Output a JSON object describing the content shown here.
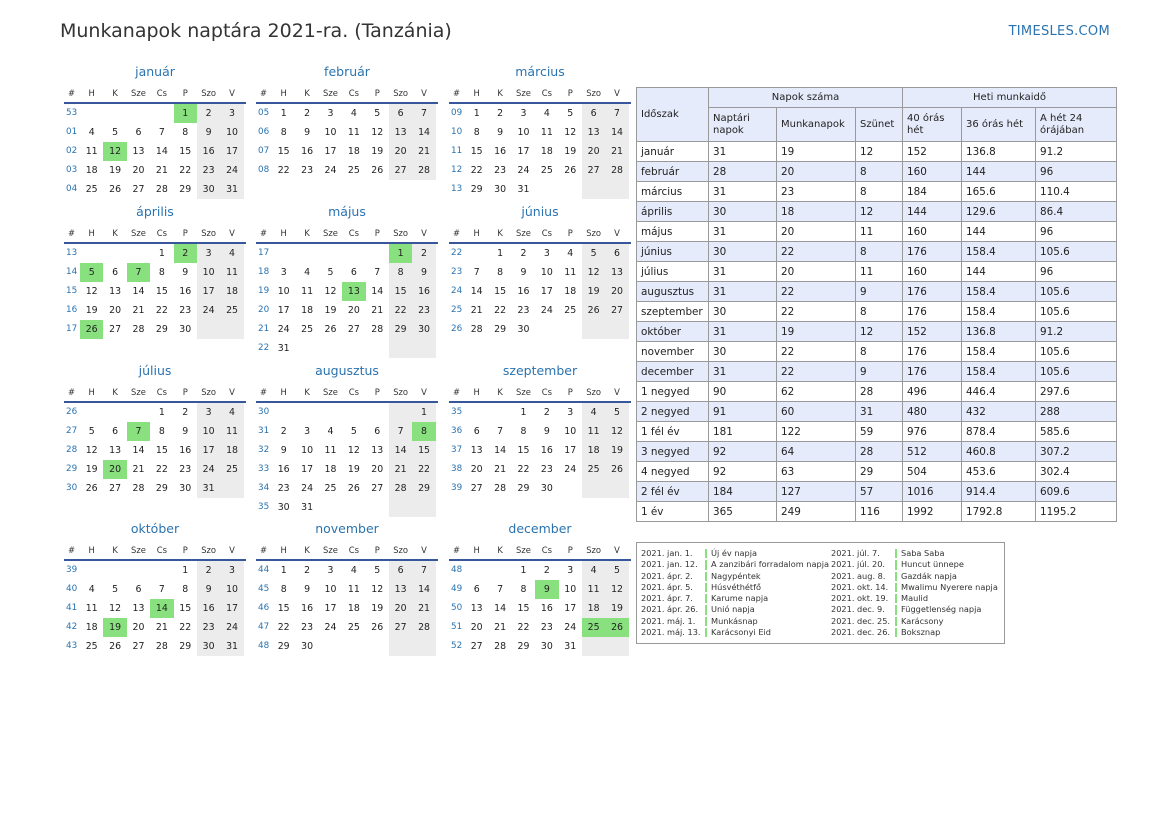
{
  "title": "Munkanapok naptára 2021-ra. (Tanzánia)",
  "brand": "TIMESLES.COM",
  "calendar": {
    "header": [
      "#",
      "H",
      "K",
      "Sze",
      "Cs",
      "P",
      "Szo",
      "V"
    ],
    "months": [
      {
        "name": "január",
        "rows": [
          [
            "53",
            "",
            "",
            "",
            "",
            "1",
            "2",
            "3"
          ],
          [
            "01",
            "4",
            "5",
            "6",
            "7",
            "8",
            "9",
            "10"
          ],
          [
            "02",
            "11",
            "12",
            "13",
            "14",
            "15",
            "16",
            "17"
          ],
          [
            "03",
            "18",
            "19",
            "20",
            "21",
            "22",
            "23",
            "24"
          ],
          [
            "04",
            "25",
            "26",
            "27",
            "28",
            "29",
            "30",
            "31"
          ]
        ],
        "holidays": [
          "1",
          "12"
        ]
      },
      {
        "name": "február",
        "rows": [
          [
            "05",
            "1",
            "2",
            "3",
            "4",
            "5",
            "6",
            "7"
          ],
          [
            "06",
            "8",
            "9",
            "10",
            "11",
            "12",
            "13",
            "14"
          ],
          [
            "07",
            "15",
            "16",
            "17",
            "18",
            "19",
            "20",
            "21"
          ],
          [
            "08",
            "22",
            "23",
            "24",
            "25",
            "26",
            "27",
            "28"
          ]
        ],
        "holidays": []
      },
      {
        "name": "március",
        "rows": [
          [
            "09",
            "1",
            "2",
            "3",
            "4",
            "5",
            "6",
            "7"
          ],
          [
            "10",
            "8",
            "9",
            "10",
            "11",
            "12",
            "13",
            "14"
          ],
          [
            "11",
            "15",
            "16",
            "17",
            "18",
            "19",
            "20",
            "21"
          ],
          [
            "12",
            "22",
            "23",
            "24",
            "25",
            "26",
            "27",
            "28"
          ],
          [
            "13",
            "29",
            "30",
            "31",
            "",
            "",
            "",
            ""
          ]
        ],
        "holidays": []
      },
      {
        "name": "április",
        "rows": [
          [
            "13",
            "",
            "",
            "",
            "1",
            "2",
            "3",
            "4"
          ],
          [
            "14",
            "5",
            "6",
            "7",
            "8",
            "9",
            "10",
            "11"
          ],
          [
            "15",
            "12",
            "13",
            "14",
            "15",
            "16",
            "17",
            "18"
          ],
          [
            "16",
            "19",
            "20",
            "21",
            "22",
            "23",
            "24",
            "25"
          ],
          [
            "17",
            "26",
            "27",
            "28",
            "29",
            "30",
            "",
            ""
          ]
        ],
        "holidays": [
          "2",
          "5",
          "7",
          "26"
        ]
      },
      {
        "name": "május",
        "rows": [
          [
            "17",
            "",
            "",
            "",
            "",
            "",
            "1",
            "2"
          ],
          [
            "18",
            "3",
            "4",
            "5",
            "6",
            "7",
            "8",
            "9"
          ],
          [
            "19",
            "10",
            "11",
            "12",
            "13",
            "14",
            "15",
            "16"
          ],
          [
            "20",
            "17",
            "18",
            "19",
            "20",
            "21",
            "22",
            "23"
          ],
          [
            "21",
            "24",
            "25",
            "26",
            "27",
            "28",
            "29",
            "30"
          ],
          [
            "22",
            "31",
            "",
            "",
            "",
            "",
            "",
            ""
          ]
        ],
        "holidays": [
          "1",
          "13"
        ]
      },
      {
        "name": "június",
        "rows": [
          [
            "22",
            "",
            "1",
            "2",
            "3",
            "4",
            "5",
            "6"
          ],
          [
            "23",
            "7",
            "8",
            "9",
            "10",
            "11",
            "12",
            "13"
          ],
          [
            "24",
            "14",
            "15",
            "16",
            "17",
            "18",
            "19",
            "20"
          ],
          [
            "25",
            "21",
            "22",
            "23",
            "24",
            "25",
            "26",
            "27"
          ],
          [
            "26",
            "28",
            "29",
            "30",
            "",
            "",
            "",
            ""
          ]
        ],
        "holidays": []
      },
      {
        "name": "július",
        "rows": [
          [
            "26",
            "",
            "",
            "",
            "1",
            "2",
            "3",
            "4"
          ],
          [
            "27",
            "5",
            "6",
            "7",
            "8",
            "9",
            "10",
            "11"
          ],
          [
            "28",
            "12",
            "13",
            "14",
            "15",
            "16",
            "17",
            "18"
          ],
          [
            "29",
            "19",
            "20",
            "21",
            "22",
            "23",
            "24",
            "25"
          ],
          [
            "30",
            "26",
            "27",
            "28",
            "29",
            "30",
            "31",
            ""
          ]
        ],
        "holidays": [
          "7",
          "20"
        ]
      },
      {
        "name": "augusztus",
        "rows": [
          [
            "30",
            "",
            "",
            "",
            "",
            "",
            "",
            "1"
          ],
          [
            "31",
            "2",
            "3",
            "4",
            "5",
            "6",
            "7",
            "8"
          ],
          [
            "32",
            "9",
            "10",
            "11",
            "12",
            "13",
            "14",
            "15"
          ],
          [
            "33",
            "16",
            "17",
            "18",
            "19",
            "20",
            "21",
            "22"
          ],
          [
            "34",
            "23",
            "24",
            "25",
            "26",
            "27",
            "28",
            "29"
          ],
          [
            "35",
            "30",
            "31",
            "",
            "",
            "",
            "",
            ""
          ]
        ],
        "holidays": [
          "8"
        ]
      },
      {
        "name": "szeptember",
        "rows": [
          [
            "35",
            "",
            "",
            "1",
            "2",
            "3",
            "4",
            "5"
          ],
          [
            "36",
            "6",
            "7",
            "8",
            "9",
            "10",
            "11",
            "12"
          ],
          [
            "37",
            "13",
            "14",
            "15",
            "16",
            "17",
            "18",
            "19"
          ],
          [
            "38",
            "20",
            "21",
            "22",
            "23",
            "24",
            "25",
            "26"
          ],
          [
            "39",
            "27",
            "28",
            "29",
            "30",
            "",
            "",
            ""
          ]
        ],
        "holidays": []
      },
      {
        "name": "október",
        "rows": [
          [
            "39",
            "",
            "",
            "",
            "",
            "1",
            "2",
            "3"
          ],
          [
            "40",
            "4",
            "5",
            "6",
            "7",
            "8",
            "9",
            "10"
          ],
          [
            "41",
            "11",
            "12",
            "13",
            "14",
            "15",
            "16",
            "17"
          ],
          [
            "42",
            "18",
            "19",
            "20",
            "21",
            "22",
            "23",
            "24"
          ],
          [
            "43",
            "25",
            "26",
            "27",
            "28",
            "29",
            "30",
            "31"
          ]
        ],
        "holidays": [
          "14",
          "19"
        ]
      },
      {
        "name": "november",
        "rows": [
          [
            "44",
            "1",
            "2",
            "3",
            "4",
            "5",
            "6",
            "7"
          ],
          [
            "45",
            "8",
            "9",
            "10",
            "11",
            "12",
            "13",
            "14"
          ],
          [
            "46",
            "15",
            "16",
            "17",
            "18",
            "19",
            "20",
            "21"
          ],
          [
            "47",
            "22",
            "23",
            "24",
            "25",
            "26",
            "27",
            "28"
          ],
          [
            "48",
            "29",
            "30",
            "",
            "",
            "",
            "",
            ""
          ]
        ],
        "holidays": []
      },
      {
        "name": "december",
        "rows": [
          [
            "48",
            "",
            "",
            "1",
            "2",
            "3",
            "4",
            "5"
          ],
          [
            "49",
            "6",
            "7",
            "8",
            "9",
            "10",
            "11",
            "12"
          ],
          [
            "50",
            "13",
            "14",
            "15",
            "16",
            "17",
            "18",
            "19"
          ],
          [
            "51",
            "20",
            "21",
            "22",
            "23",
            "24",
            "25",
            "26"
          ],
          [
            "52",
            "27",
            "28",
            "29",
            "30",
            "31",
            "",
            ""
          ]
        ],
        "holidays": [
          "9",
          "25",
          "26"
        ]
      }
    ]
  },
  "stats": {
    "h_period": "Időszak",
    "h_days": "Napok száma",
    "h_weekly": "Heti munkaidő",
    "cols": [
      "Naptári napok",
      "Munkanapok",
      "Szünet",
      "40 órás hét",
      "36 órás hét",
      "A hét 24 órájában"
    ],
    "rows": [
      [
        "január",
        "31",
        "19",
        "12",
        "152",
        "136.8",
        "91.2"
      ],
      [
        "február",
        "28",
        "20",
        "8",
        "160",
        "144",
        "96"
      ],
      [
        "március",
        "31",
        "23",
        "8",
        "184",
        "165.6",
        "110.4"
      ],
      [
        "április",
        "30",
        "18",
        "12",
        "144",
        "129.6",
        "86.4"
      ],
      [
        "május",
        "31",
        "20",
        "11",
        "160",
        "144",
        "96"
      ],
      [
        "június",
        "30",
        "22",
        "8",
        "176",
        "158.4",
        "105.6"
      ],
      [
        "július",
        "31",
        "20",
        "11",
        "160",
        "144",
        "96"
      ],
      [
        "augusztus",
        "31",
        "22",
        "9",
        "176",
        "158.4",
        "105.6"
      ],
      [
        "szeptember",
        "30",
        "22",
        "8",
        "176",
        "158.4",
        "105.6"
      ],
      [
        "október",
        "31",
        "19",
        "12",
        "152",
        "136.8",
        "91.2"
      ],
      [
        "november",
        "30",
        "22",
        "8",
        "176",
        "158.4",
        "105.6"
      ],
      [
        "december",
        "31",
        "22",
        "9",
        "176",
        "158.4",
        "105.6"
      ],
      [
        "1 negyed",
        "90",
        "62",
        "28",
        "496",
        "446.4",
        "297.6"
      ],
      [
        "2 negyed",
        "91",
        "60",
        "31",
        "480",
        "432",
        "288"
      ],
      [
        "1 fél év",
        "181",
        "122",
        "59",
        "976",
        "878.4",
        "585.6"
      ],
      [
        "3 negyed",
        "92",
        "64",
        "28",
        "512",
        "460.8",
        "307.2"
      ],
      [
        "4 negyed",
        "92",
        "63",
        "29",
        "504",
        "453.6",
        "302.4"
      ],
      [
        "2 fél év",
        "184",
        "127",
        "57",
        "1016",
        "914.4",
        "609.6"
      ],
      [
        "1 év",
        "365",
        "249",
        "116",
        "1992",
        "1792.8",
        "1195.2"
      ]
    ]
  },
  "holidays": [
    [
      [
        "2021. jan. 1.",
        "Új év napja"
      ],
      [
        "2021. jan. 12.",
        "A zanzibári forradalom napja"
      ],
      [
        "2021. ápr. 2.",
        "Nagypéntek"
      ],
      [
        "2021. ápr. 5.",
        "Húsvéthétfő"
      ],
      [
        "2021. ápr. 7.",
        "Karume napja"
      ],
      [
        "2021. ápr. 26.",
        "Unió napja"
      ],
      [
        "2021. máj. 1.",
        "Munkásnap"
      ],
      [
        "2021. máj. 13.",
        "Karácsonyi Eid"
      ]
    ],
    [
      [
        "2021. júl. 7.",
        "Saba Saba"
      ],
      [
        "2021. júl. 20.",
        "Huncut ünnepe"
      ],
      [
        "2021. aug. 8.",
        "Gazdák napja"
      ],
      [
        "2021. okt. 14.",
        "Mwalimu Nyerere napja"
      ],
      [
        "2021. okt. 19.",
        "Maulid"
      ],
      [
        "2021. dec. 9.",
        "Függetlenség napja"
      ],
      [
        "2021. dec. 25.",
        "Karácsony"
      ],
      [
        "2021. dec. 26.",
        "Boksznap"
      ]
    ]
  ]
}
